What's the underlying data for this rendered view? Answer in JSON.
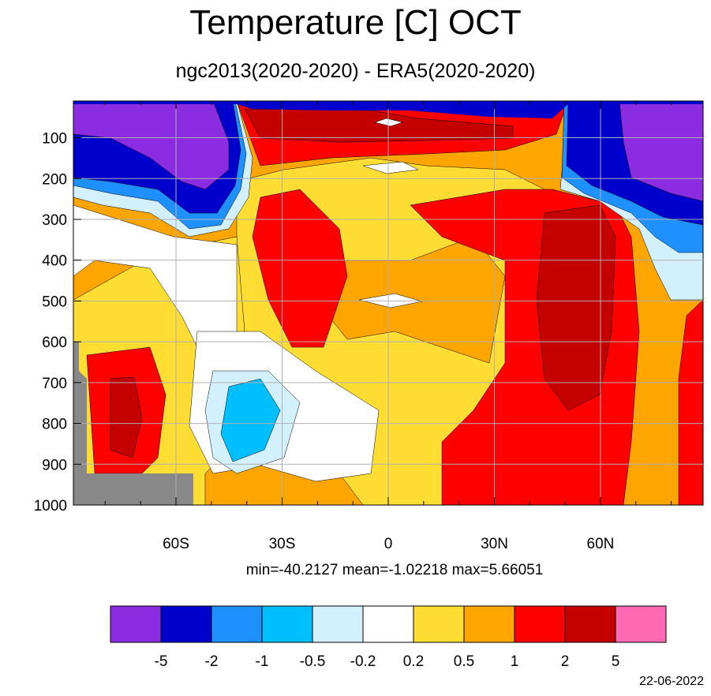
{
  "title": "Temperature [C] OCT",
  "subtitle": "ngc2013(2020-2020) - ERA5(2020-2020)",
  "stats": "min=-40.2127   mean=-1.02218   max=5.66051",
  "date": "22-06-2022",
  "chart_data": {
    "type": "heatmap",
    "title": "Temperature [C] OCT",
    "subtitle": "ngc2013(2020-2020) - ERA5(2020-2020)",
    "x_ticks": [
      {
        "value": -60,
        "label": "60S"
      },
      {
        "value": -30,
        "label": "30S"
      },
      {
        "value": 0,
        "label": "0"
      },
      {
        "value": 30,
        "label": "30N"
      },
      {
        "value": 60,
        "label": "60N"
      }
    ],
    "xlim": [
      -89,
      89
    ],
    "y_ticks": [
      100,
      200,
      300,
      400,
      500,
      600,
      700,
      800,
      900,
      1000
    ],
    "ylim": [
      1000,
      10
    ],
    "y_reversed": true,
    "grid": true,
    "colorbar": {
      "levels": [
        -5,
        -2,
        -1,
        -0.5,
        -0.2,
        0.2,
        0.5,
        1,
        2,
        5
      ],
      "colors": [
        "#8b2be2",
        "#0000cd",
        "#1e90ff",
        "#00bfff",
        "#d3f0ff",
        "#ffffff",
        "#ffdd33",
        "#ffa500",
        "#ff0000",
        "#c40000",
        "#ff69b4"
      ]
    },
    "min": -40.2127,
    "mean": -1.02218,
    "max": 5.66051
  }
}
